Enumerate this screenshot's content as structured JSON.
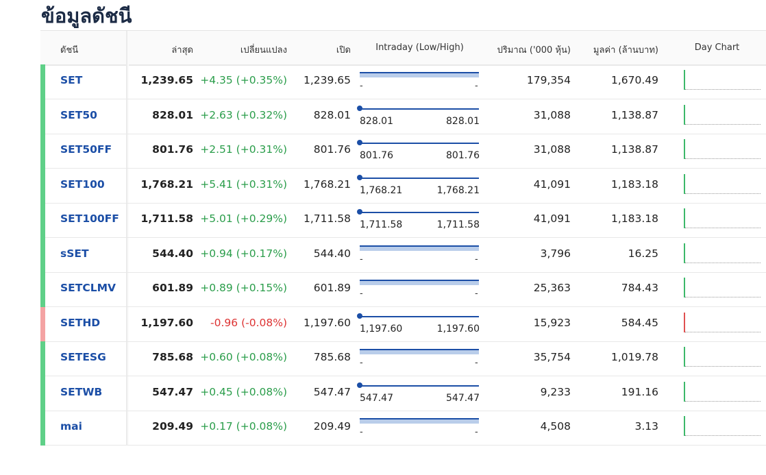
{
  "header": {
    "title": "ข้อมูลดัชนี"
  },
  "table": {
    "columns": [
      "ดัชนี",
      "ล่าสุด",
      "เปลี่ยนแปลง",
      "เปิด",
      "Intraday (Low/High)",
      "ปริมาณ ('000 หุ้น)",
      "มูลค่า (ล้านบาท)",
      "Day Chart"
    ],
    "rows": [
      {
        "name": "SET",
        "last": "1,239.65",
        "change": "+4.35 (+0.35%)",
        "open": "1,239.65",
        "low": "-",
        "high": "-",
        "volume": "179,354",
        "value": "1,670.49"
      },
      {
        "name": "SET50",
        "last": "828.01",
        "change": "+2.63 (+0.32%)",
        "open": "828.01",
        "low": "828.01",
        "high": "828.01",
        "volume": "31,088",
        "value": "1,138.87"
      },
      {
        "name": "SET50FF",
        "last": "801.76",
        "change": "+2.51 (+0.31%)",
        "open": "801.76",
        "low": "801.76",
        "high": "801.76",
        "volume": "31,088",
        "value": "1,138.87"
      },
      {
        "name": "SET100",
        "last": "1,768.21",
        "change": "+5.41 (+0.31%)",
        "open": "1,768.21",
        "low": "1,768.21",
        "high": "1,768.21",
        "volume": "41,091",
        "value": "1,183.18"
      },
      {
        "name": "SET100FF",
        "last": "1,711.58",
        "change": "+5.01 (+0.29%)",
        "open": "1,711.58",
        "low": "1,711.58",
        "high": "1,711.58",
        "volume": "41,091",
        "value": "1,183.18"
      },
      {
        "name": "sSET",
        "last": "544.40",
        "change": "+0.94 (+0.17%)",
        "open": "544.40",
        "low": "-",
        "high": "-",
        "volume": "3,796",
        "value": "16.25"
      },
      {
        "name": "SETCLMV",
        "last": "601.89",
        "change": "+0.89 (+0.15%)",
        "open": "601.89",
        "low": "-",
        "high": "-",
        "volume": "25,363",
        "value": "784.43"
      },
      {
        "name": "SETHD",
        "last": "1,197.60",
        "change": "-0.96 (-0.08%)",
        "open": "1,197.60",
        "low": "1,197.60",
        "high": "1,197.60",
        "volume": "15,923",
        "value": "584.45"
      },
      {
        "name": "SETESG",
        "last": "785.68",
        "change": "+0.60 (+0.08%)",
        "open": "785.68",
        "low": "-",
        "high": "-",
        "volume": "35,754",
        "value": "1,019.78"
      },
      {
        "name": "SETWB",
        "last": "547.47",
        "change": "+0.45 (+0.08%)",
        "open": "547.47",
        "low": "547.47",
        "high": "547.47",
        "volume": "9,233",
        "value": "191.16"
      },
      {
        "name": "mai",
        "last": "209.49",
        "change": "+0.17 (+0.08%)",
        "open": "209.49",
        "low": "-",
        "high": "-",
        "volume": "4,508",
        "value": "3.13"
      }
    ]
  }
}
